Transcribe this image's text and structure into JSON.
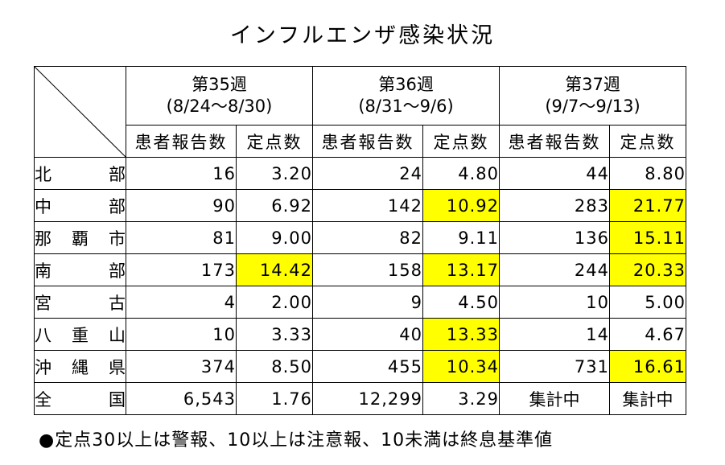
{
  "title": "インフルエンザ感染状況",
  "weeks": [
    {
      "label": "第35週",
      "range": "(8/24〜8/30)"
    },
    {
      "label": "第36週",
      "range": "(8/31〜9/6)"
    },
    {
      "label": "第37週",
      "range": "(9/7〜9/13)"
    }
  ],
  "sub_headers": {
    "reports": "患者報告数",
    "per_site": "定点数"
  },
  "rows": [
    {
      "region": [
        "北",
        "部"
      ],
      "cells": [
        {
          "v": "16",
          "hl": false
        },
        {
          "v": "3.20",
          "hl": false
        },
        {
          "v": "24",
          "hl": false
        },
        {
          "v": "4.80",
          "hl": false
        },
        {
          "v": "44",
          "hl": false
        },
        {
          "v": "8.80",
          "hl": false
        }
      ]
    },
    {
      "region": [
        "中",
        "部"
      ],
      "cells": [
        {
          "v": "90",
          "hl": false
        },
        {
          "v": "6.92",
          "hl": false
        },
        {
          "v": "142",
          "hl": false
        },
        {
          "v": "10.92",
          "hl": true
        },
        {
          "v": "283",
          "hl": false
        },
        {
          "v": "21.77",
          "hl": true
        }
      ]
    },
    {
      "region": [
        "那",
        "覇",
        "市"
      ],
      "cells": [
        {
          "v": "81",
          "hl": false
        },
        {
          "v": "9.00",
          "hl": false
        },
        {
          "v": "82",
          "hl": false
        },
        {
          "v": "9.11",
          "hl": false
        },
        {
          "v": "136",
          "hl": false
        },
        {
          "v": "15.11",
          "hl": true
        }
      ]
    },
    {
      "region": [
        "南",
        "部"
      ],
      "cells": [
        {
          "v": "173",
          "hl": false
        },
        {
          "v": "14.42",
          "hl": true
        },
        {
          "v": "158",
          "hl": false
        },
        {
          "v": "13.17",
          "hl": true
        },
        {
          "v": "244",
          "hl": false
        },
        {
          "v": "20.33",
          "hl": true
        }
      ]
    },
    {
      "region": [
        "宮",
        "古"
      ],
      "cells": [
        {
          "v": "4",
          "hl": false
        },
        {
          "v": "2.00",
          "hl": false
        },
        {
          "v": "9",
          "hl": false
        },
        {
          "v": "4.50",
          "hl": false
        },
        {
          "v": "10",
          "hl": false
        },
        {
          "v": "5.00",
          "hl": false
        }
      ]
    },
    {
      "region": [
        "八",
        "重",
        "山"
      ],
      "cells": [
        {
          "v": "10",
          "hl": false
        },
        {
          "v": "3.33",
          "hl": false
        },
        {
          "v": "40",
          "hl": false
        },
        {
          "v": "13.33",
          "hl": true
        },
        {
          "v": "14",
          "hl": false
        },
        {
          "v": "4.67",
          "hl": false
        }
      ]
    },
    {
      "region": [
        "沖",
        "縄",
        "県"
      ],
      "cells": [
        {
          "v": "374",
          "hl": false
        },
        {
          "v": "8.50",
          "hl": false
        },
        {
          "v": "455",
          "hl": false
        },
        {
          "v": "10.34",
          "hl": true
        },
        {
          "v": "731",
          "hl": false
        },
        {
          "v": "16.61",
          "hl": true
        }
      ]
    },
    {
      "region": [
        "全",
        "国"
      ],
      "cells": [
        {
          "v": "6,543",
          "hl": false
        },
        {
          "v": "1.76",
          "hl": false
        },
        {
          "v": "12,299",
          "hl": false
        },
        {
          "v": "3.29",
          "hl": false
        },
        {
          "v": "集計中",
          "hl": false,
          "center": true
        },
        {
          "v": "集計中",
          "hl": false,
          "center": true
        }
      ]
    }
  ],
  "highlight_color": "#ffff00",
  "note": "●定点30以上は警報、10以上は注意報、10未満は終息基準値"
}
